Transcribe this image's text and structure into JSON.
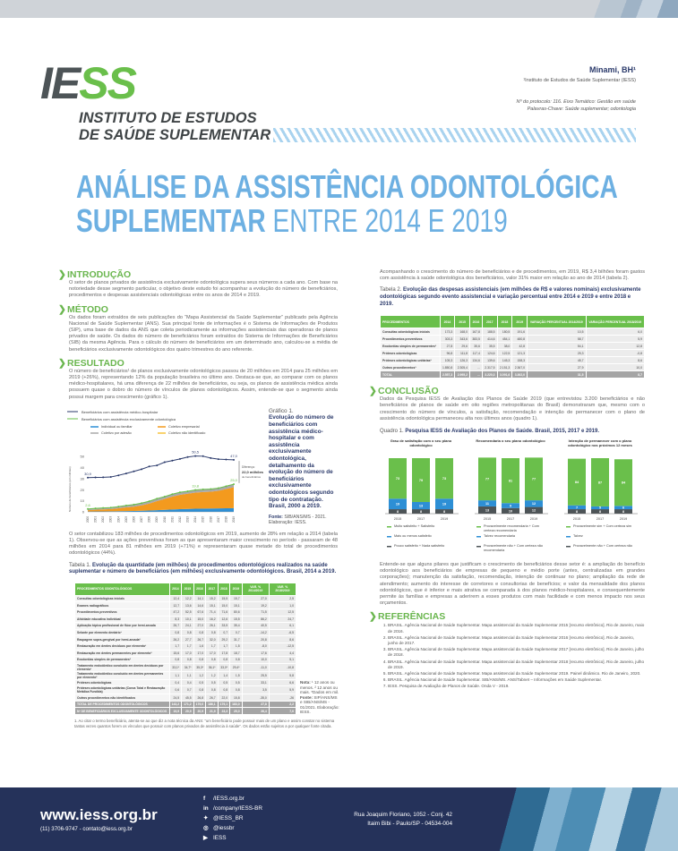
{
  "header": {
    "logo_text": "IESS",
    "institute_line1": "INSTITUTO DE ESTUDOS",
    "institute_line2": "DE SAÚDE SUPLEMENTAR",
    "author": "Minami, BH¹",
    "affiliation": "¹Instituto de Estudos de Saúde Suplementar (IESS)",
    "protocol": "Nº do protocolo: 116. Eixo Temático: Gestão em saúde",
    "keywords": "Palavras-Chave: Saúde suplementar; odontologia"
  },
  "title": {
    "line1": "ANÁLISE DA ASSISTÊNCIA ODONTOLÓGICA",
    "line2_bold": "SUPLEMENTAR",
    "line2_thin": "ENTRE 2014 E 2019"
  },
  "intro": {
    "heading": "INTRODUÇÃO",
    "text": "O setor de planos privados de assistência exclusivamente odontológica supera seus números a cada ano. Com base na notoriedade desse segmento particular, o objetivo deste estudo foi acompanhar a evolução do número de beneficiários, procedimentos e despesas assistenciais odontológicas entre os anos de 2014 e 2019."
  },
  "method": {
    "heading": "MÉTODO",
    "text": "Os dados foram extraídos de seis publicações do “Mapa Assistencial da Saúde Suplementar” publicado pela Agência Nacional de Saúde Suplementar (ANS). Sua principal fonte de informações é o Sistema de Informações de Produtos (SIP), uma base de dados da ANS que coleta periodicamente as informações assistenciais das operadoras de planos privados de saúde. Os dados do número de beneficiários foram extraídos do Sistema de Informações de Beneficiários (SIB) da mesma Agência. Para o cálculo do número de beneficiários em um determinado ano, calculou-se a média de beneficiários exclusivamente odontológicos dos quatro trimestres do ano referente."
  },
  "result": {
    "heading": "RESULTADO",
    "text1": "O número de beneficiários¹ de planos exclusivamente odontológicos passou de 20 milhões em 2014 para 25 milhões em 2019 (+26%), representando 12% da população brasileira no último ano. Destaca-se que, ao comparar com os planos médico-hospitalares, há uma diferença de 22 milhões de beneficiários, ou seja, os planos de assistência médica ainda possuem quase o dobro do número de vínculos de planos odontológicos. Assim, entende-se que o segmento ainda possui margem para crescimento (gráfico 1).",
    "text2": "O setor contabilizou 183 milhões de procedimentos odontológicos em 2019, aumento de 28% em relação a 2014 (tabela 1). Observou-se que as ações preventivas foram as que apresentaram maior crescimento no período - passaram de 48 milhões em 2014 para 81 milhões em 2019 (+71%) e representaram quase metade do total de procedimentos odontológicos (44%).",
    "footnote": "1. Ao citar o termo beneficiário, atenta-se ao que diz a nota técnica da ANS: “um beneficiário pode possuir mais de um plano e assim constar no sistema tantas vezes quantos forem os vínculos que possuir com planos privados de assistência à saúde”. Os dados estão sujeitos a por qualquer fonte citada."
  },
  "chart_data": {
    "type": "line",
    "x": [
      2000,
      2001,
      2002,
      2003,
      2004,
      2005,
      2006,
      2007,
      2008,
      2009,
      2010,
      2011,
      2012,
      2013,
      2014,
      2015,
      2016,
      2017,
      2018,
      2019
    ],
    "ylabel": "Número de beneficiários (em milhões)",
    "ylim": [
      0,
      55
    ],
    "yticks": [
      0,
      10,
      20,
      30,
      40,
      50
    ],
    "series": [
      {
        "name": "Beneficiários com assistência médico-hospitalar",
        "color": "#2b3a6b",
        "values": [
          30.9,
          31.1,
          31.2,
          31.5,
          33.0,
          34.7,
          36.6,
          38.5,
          41.0,
          42.0,
          44.9,
          46.3,
          47.8,
          49.5,
          50.5,
          50.3,
          48.6,
          47.6,
          47.3,
          47.0
        ]
      },
      {
        "name": "Beneficiários com assistência exclusivamente odontológica",
        "color": "#6abf4b",
        "values": [
          2.6,
          3.1,
          3.5,
          3.8,
          4.8,
          5.8,
          6.6,
          7.9,
          9.6,
          11.9,
          13.8,
          16.0,
          17.7,
          18.6,
          19.8,
          20.3,
          20.6,
          21.4,
          23.2,
          25.0
        ]
      }
    ],
    "stacked": [
      {
        "name": "Individual ou familiar",
        "color": "#2d8fd5",
        "values": [
          0.3,
          0.4,
          0.4,
          0.5,
          0.6,
          0.7,
          0.8,
          1.0,
          1.2,
          1.5,
          1.8,
          2.1,
          2.4,
          2.6,
          2.8,
          2.9,
          3.0,
          3.1,
          3.2,
          3.3
        ]
      },
      {
        "name": "Coletivo empresarial",
        "color": "#f39a1e",
        "values": [
          1.2,
          1.5,
          1.8,
          2.0,
          2.6,
          3.3,
          3.9,
          4.9,
          6.3,
          8.2,
          9.8,
          11.6,
          13.0,
          13.8,
          14.6,
          15.0,
          15.2,
          15.9,
          17.4,
          19.0
        ]
      },
      {
        "name": "Coletivo por adesão",
        "color": "#a9a9a9",
        "values": [
          1.0,
          1.1,
          1.2,
          1.2,
          1.5,
          1.7,
          1.8,
          1.9,
          2.0,
          2.1,
          2.1,
          2.2,
          2.2,
          2.1,
          2.3,
          2.3,
          2.3,
          2.3,
          2.5,
          2.6
        ]
      },
      {
        "name": "Coletivo não identificado",
        "color": "#f7c33c",
        "values": [
          0.1,
          0.1,
          0.1,
          0.1,
          0.1,
          0.1,
          0.1,
          0.1,
          0.1,
          0.1,
          0.1,
          0.1,
          0.1,
          0.1,
          0.1,
          0.1,
          0.1,
          0.1,
          0.1,
          0.1
        ]
      }
    ],
    "labels": {
      "med_first": "30,9",
      "med_peak": "50,5",
      "med_last": "47,0",
      "odo_first": "2,6",
      "odo_mid": "19,8",
      "odo_last": "25,0"
    },
    "difference_label": "Diferença:",
    "difference_value": "22,0 milhões",
    "difference_unit": "de beneficiários"
  },
  "chart_caption": {
    "prefix": "Gráfico 1.",
    "title": "Evolução do número de beneficiários com assistência médico-hospitalar e com assistência exclusivamente odontológica, detalhamento da evolução do número de beneficiários exclusivamente odontológicos segundo tipo de contratação. Brasil, 2000 a 2019.",
    "source_label": "Fonte:",
    "source": "SIB/ANS/MS - 2021.",
    "elab": "Elaboração: IESS."
  },
  "table1": {
    "prefix": "Tabela 1.",
    "title": "Evolução da quantidade (em milhões) de procedimentos odontológicos realizados na saúde suplementar e número de beneficiários (em milhões) exclusivamente odontológicos. Brasil, 2014 a 2019.",
    "headers": [
      "PROCEDIMENTOS ODONTOLÓGICOS",
      "2014",
      "2015",
      "2016",
      "2017",
      "2018",
      "2019",
      "VAR. % 2014/2019",
      "VAR. % 2018/2019"
    ],
    "rows": [
      [
        "Consultas odontológicas iniciais",
        "12,4",
        "12,2",
        "14,1",
        "15,2",
        "15,5",
        "15,7",
        "27,0",
        "2,5"
      ],
      [
        "Exames radiográficos",
        "12,7",
        "13,6",
        "14,6",
        "15,1",
        "15,0",
        "15,1",
        "19,2",
        "1,0"
      ],
      [
        "Procedimentos preventivos",
        "47,2",
        "52,5",
        "67,6",
        "71,4",
        "71,6",
        "80,6",
        "71,5",
        "12,5"
      ],
      [
        "Atividade educativa individual",
        "8,3",
        "10,1",
        "15,0",
        "16,2",
        "12,6",
        "15,5",
        "86,2",
        "24,7"
      ],
      [
        "Aplicação tópica profissional de flúor por hemi-arcada",
        "26,7",
        "24,1",
        "27,0",
        "26,1",
        "33,5",
        "35,4",
        "40,5",
        "6,1"
      ],
      [
        "Selante por elemento dentário¹",
        "0,8",
        "0,8",
        "0,8",
        "0,8",
        "0,7",
        "0,7",
        "-14,2",
        "-6,5"
      ],
      [
        "Raspagem supra-gengival por hemi-arcada²",
        "26,2",
        "27,7",
        "26,7",
        "32,0",
        "29,2",
        "31,7",
        "20,8",
        "8,6"
      ],
      [
        "Restauração em dentes decíduos por elemento¹",
        "1,7",
        "1,7",
        "1,6",
        "1,7",
        "1,7",
        "1,5",
        "-8,0",
        "-12,5"
      ],
      [
        "Restauração em dentes permanentes por elemento²",
        "15,6",
        "17,0",
        "17,0",
        "17,0",
        "17,8",
        "18,7",
        "17,6",
        "4,4"
      ],
      [
        "Exodontias simples de permanentes²",
        "0,8",
        "0,8",
        "0,8",
        "0,8",
        "0,8",
        "0,8",
        "10,0",
        "5,1"
      ],
      [
        "Tratamento endodôntico concluído em dentes decíduos por elemento¹",
        "33,1*",
        "34,7*",
        "35,3*",
        "36,1*",
        "33,0*",
        "29,4*",
        "-11,0",
        "-10,8"
      ],
      [
        "Tratamento endodôntico concluído em dentes permanentes por elemento²",
        "1,1",
        "1,1",
        "1,2",
        "1,2",
        "1,4",
        "1,5",
        "25,5",
        "5,8"
      ],
      [
        "Próteses odontológicas",
        "0,4",
        "0,4",
        "0,5",
        "0,5",
        "0,5",
        "0,5",
        "33,1",
        "6,6"
      ],
      [
        "Próteses odontológicas unitárias (Coroa Total e Restauração Metálica Fundida)",
        "0,6",
        "0,7",
        "0,8",
        "0,8",
        "0,8",
        "0,8",
        "3,5",
        "5,9"
      ],
      [
        "Outros procedimentos não identificados",
        "24,5",
        "45,5",
        "26,8",
        "26,7",
        "22,0",
        "15,8",
        "-35,0",
        "-26"
      ]
    ],
    "totals": [
      [
        "TOTAL DE PROCEDIMENTOS ODONTOLÓGICOS",
        "143,2",
        "171,2",
        "179,0",
        "186,1",
        "179,1",
        "183,0",
        "27,8",
        "2,2"
      ],
      [
        "Nº DE BENEFICIÁRIOS EXCLUSIVAMENTE ODONTOLÓGICOS",
        "19,9",
        "20,9",
        "20,9",
        "21,9",
        "23,3",
        "25,0",
        "26,4",
        "7,0"
      ]
    ],
    "note_label": "Nota:",
    "note": "¹ 12 anos ou menos. ² 12 anos ou mais. *Dados em mil.",
    "source_label": "Fonte:",
    "source": "SIP/ANS/MS e SIB/ANS/MS - 01/2021. Elaboração: IESS."
  },
  "right": {
    "text1": "Acompanhando o crescimento do número de beneficiários e de procedimentos, em 2019, R$ 3,4 bilhões foram gastos com assistência à saúde odontológica dos beneficiários, valor 31% maior em relação ao ano de 2014 (tabela 2)."
  },
  "table2": {
    "prefix": "Tabela 2.",
    "title": "Evolução das despesas assistenciais (em milhões de R$ e valores nominais) exclusivamente odontológicas segundo evento assistencial e variação percentual entre 2014 e 2019 e entre 2018 e 2019.",
    "headers": [
      "PROCEDIMENTOS",
      "2014",
      "2015",
      "2016",
      "2017",
      "2018",
      "2019",
      "VARIAÇÃO PERCENTUAL 2014/2019",
      "VARIAÇÃO PERCENTUAL 2018/2019"
    ],
    "rows": [
      [
        "Consultas odontológicas iniciais",
        "173,3",
        "168,0",
        "167,8",
        "188,5",
        "180,5",
        "191,6",
        "10,5",
        "6,0"
      ],
      [
        "Procedimentos preventivos",
        "303,3",
        "343,6",
        "383,5",
        "414,6",
        "454,1",
        "480,8",
        "58,7",
        "5,9"
      ],
      [
        "Exodontias simples de permanentes²",
        "27,8",
        "29,6",
        "35,6",
        "35,5",
        "38,0",
        "42,8",
        "54,1",
        "12,8"
      ],
      [
        "Próteses odontológicas",
        "96,8",
        "111,8",
        "117,4",
        "124,6",
        "122,5",
        "121,3",
        "25,3",
        "-0,8"
      ],
      [
        "Próteses odontológicas unitárias²",
        "105,3",
        "126,3",
        "134,6",
        "139,6",
        "145,3",
        "158,3",
        "45,7",
        "8,6"
      ],
      [
        "Outros procedimentos³",
        "1.850,8",
        "2.305,4",
        "...",
        "2.317,5",
        "2.151,3",
        "2.367,0",
        "27,9",
        "10,0"
      ]
    ],
    "totals": [
      [
        "TOTAL",
        "2.557,3",
        "2.995,2",
        "...",
        "3.220,3",
        "3.091,6",
        "3.362,0",
        "31,5",
        "8,7"
      ]
    ]
  },
  "conclusion": {
    "heading": "CONCLUSÃO",
    "text1": "Dados da Pesquisa IESS de Avaliação dos Planos de Saúde 2019 (que entrevistou 3.200 beneficiários e não beneficiários de planos de saúde em oito regiões metropolitanas do Brasil) demonstraram que, mesmo com o crescimento do número de vínculos, a satisfação, recomendação e intenção de permanecer com o plano de assistência odontológica permaneceu alta nos últimos anos (quadro 1).",
    "quadro_prefix": "Quadro 1.",
    "quadro_title": "Pesquisa IESS de Avaliação dos Planos de Saúde. Brasil, 2015, 2017 e 2019.",
    "text2": "Entende-se que alguns pilares que justificam o crescimento de beneficiários desse setor é: a ampliação do benefício odontológico aos beneficiários de empresas de pequeno e médio porte (antes, centralizadas em grandes corporações); manutenção da satisfação, recomendação, intenção de continuar no plano; ampliação da rede de atendimento; aumento do interesse de corretores e consultorias de benefícios; e valor da mensalidade dos planos odontológicos, que é inferior e mais atrativa se comparada à dos planos médico-hospitalares, e consequentemente permite às famílias e empresas a aderirem a esses produtos com mais facilidade e com menos impacto nos seus orçamentos."
  },
  "quadro_charts": [
    {
      "type": "bar",
      "title": "Grau de satisfação com o seu plano odontológico",
      "categories": [
        "2015",
        "2017",
        "2019"
      ],
      "series": [
        {
          "name": "Pouco satisfeito + Nada satisfeito",
          "color": "#4d5457",
          "values": [
            8,
            8,
            8
          ]
        },
        {
          "name": "Mais ou menos satisfeito",
          "color": "#2d8fd5",
          "values": [
            19,
            13,
            19
          ]
        },
        {
          "name": "Muito satisfeito + Satisfeito",
          "color": "#6abf4b",
          "values": [
            73,
            79,
            73
          ]
        }
      ]
    },
    {
      "type": "bar",
      "title": "Recomendaria o seu plano odontológico",
      "categories": [
        "2015",
        "2017",
        "2019"
      ],
      "series": [
        {
          "name": "Provavelmente não + Com certeza não recomendaria",
          "color": "#4d5457",
          "values": [
            13,
            10,
            12
          ]
        },
        {
          "name": "Talvez recomendaria",
          "color": "#2d8fd5",
          "values": [
            11,
            9,
            12
          ]
        },
        {
          "name": "Provavelmente recomendaria + Com certeza recomendaria",
          "color": "#6abf4b",
          "values": [
            77,
            81,
            77
          ]
        }
      ]
    },
    {
      "type": "bar",
      "title": "Intenção de permanecer com o plano odontológico nos próximos 12 meses",
      "categories": [
        "2015",
        "2017",
        "2019"
      ],
      "series": [
        {
          "name": "Provavelmente não + Com certeza não",
          "color": "#4d5457",
          "values": [
            8,
            8,
            8
          ]
        },
        {
          "name": "Talvez",
          "color": "#2d8fd5",
          "values": [
            7,
            5,
            6
          ]
        },
        {
          "name": "Provavelmente sim + Com certeza sim",
          "color": "#6abf4b",
          "values": [
            84,
            87,
            84
          ]
        }
      ]
    }
  ],
  "references": {
    "heading": "REFERÊNCIAS",
    "items": [
      "BRASIL. Agência Nacional de Saúde Suplementar. Mapa assistencial da Saúde Suplementar 2015 [recurso eletrônico]. Rio de Janeiro, maio de 2016.",
      "BRASIL. Agência Nacional de Saúde Suplementar. Mapa assistencial da Saúde Suplementar 2016 [recurso eletrônico]. Rio de Janeiro, junho de 2017.",
      "BRASIL. Agência Nacional de Saúde Suplementar. Mapa assistencial da Saúde Suplementar 2017 [recurso eletrônico]. Rio de Janeiro, julho de 2018.",
      "BRASIL. Agência Nacional de Saúde Suplementar. Mapa assistencial da Saúde Suplementar 2018 [recurso eletrônico]. Rio de Janeiro, julho de 2019.",
      "BRASIL. Agência Nacional de Saúde Suplementar. Mapa assistencial da Saúde Suplementar 2019. Painel dinâmico. Rio de Janeiro, 2020.",
      "BRASIL. Agência Nacional de Saúde Suplementar. SIB/ANS/MS. ANS/Tabnet – Informações em Saúde Suplementar.",
      "IESS. Pesquisa de Avaliação de Planos de Saúde. Onda V - 2019."
    ]
  },
  "footer": {
    "website": "www.iess.org.br",
    "contact": "(11) 3706-9747 - contato@iess.org.br",
    "social": [
      {
        "icon": "facebook-icon",
        "glyph": "f",
        "label": "/IESS.org.br"
      },
      {
        "icon": "linkedin-icon",
        "glyph": "in",
        "label": "/company/IESS-BR"
      },
      {
        "icon": "twitter-icon",
        "glyph": "✦",
        "label": "@IESS_BR"
      },
      {
        "icon": "instagram-icon",
        "glyph": "◎",
        "label": "@iessbr"
      },
      {
        "icon": "youtube-icon",
        "glyph": "▶",
        "label": "IESS"
      }
    ],
    "address1": "Rua Joaquim Floriano, 1052 - Conj. 42",
    "address2": "Itaim Bibi - Paulo/SP - 04534-004"
  },
  "colors": {
    "green": "#6abf4b",
    "blue_title": "#6db0e2",
    "navy": "#25325a"
  }
}
